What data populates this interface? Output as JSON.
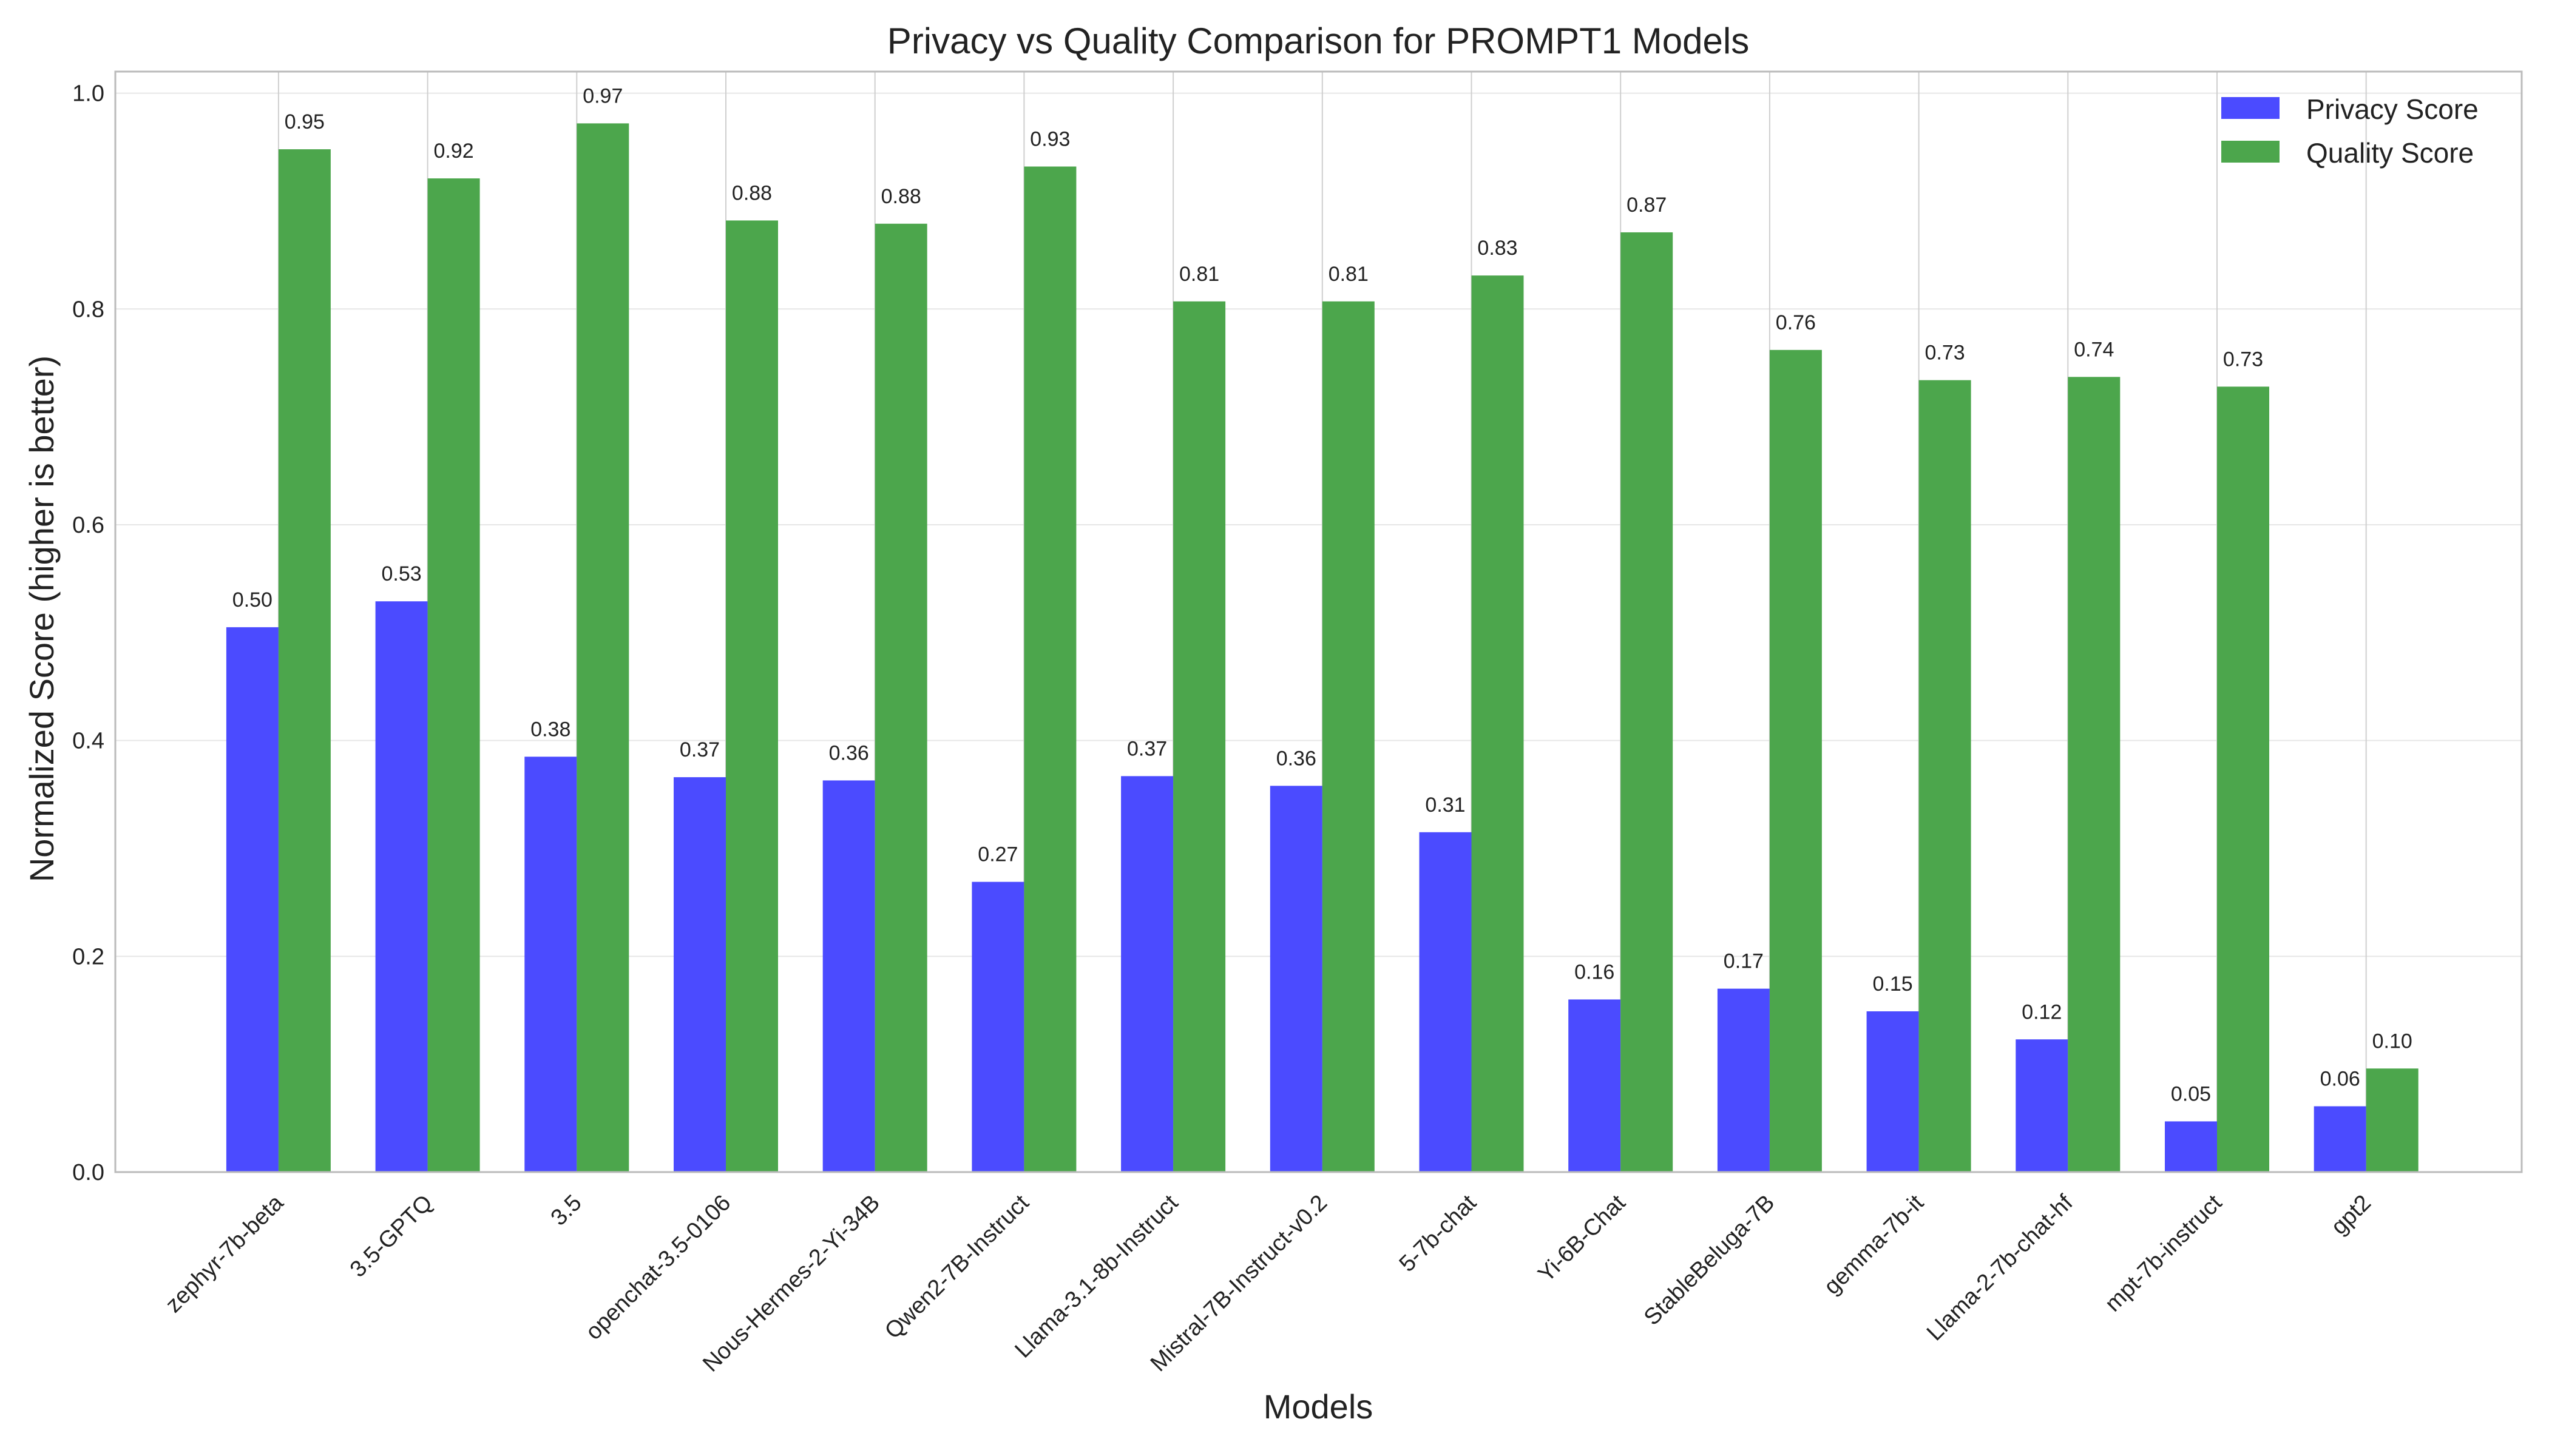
{
  "chart_data": {
    "type": "bar",
    "title": "Privacy vs Quality Comparison for PROMPT1 Models",
    "xlabel": "Models",
    "ylabel": "Normalized Score (higher is better)",
    "ylim": [
      0,
      1.02
    ],
    "yticks": [
      "0.0",
      "0.2",
      "0.4",
      "0.6",
      "0.8",
      "1.0"
    ],
    "grid": true,
    "legend_position": "top-right",
    "categories": [
      "zephyr-7b-beta",
      "3.5-GPTQ",
      "3.5",
      "openchat-3.5-0106",
      "Nous-Hermes-2-Yi-34B",
      "Qwen2-7B-Instruct",
      "Llama-3.1-8b-Instruct",
      "Mistral-7B-Instruct-v0.2",
      "5-7b-chat",
      "Yi-6B-Chat",
      "StableBeluga-7B",
      "gemma-7b-it",
      "Llama-2-7b-chat-hf",
      "mpt-7b-instruct",
      "gpt2"
    ],
    "series": [
      {
        "name": "Privacy Score",
        "color": "#4b4bff",
        "values": [
          0.505,
          0.529,
          0.385,
          0.366,
          0.363,
          0.269,
          0.367,
          0.358,
          0.315,
          0.16,
          0.17,
          0.149,
          0.123,
          0.047,
          0.061
        ],
        "labels": [
          "0.50",
          "0.53",
          "0.38",
          "0.37",
          "0.36",
          "0.27",
          "0.37",
          "0.36",
          "0.31",
          "0.16",
          "0.17",
          "0.15",
          "0.12",
          "0.05",
          "0.06"
        ]
      },
      {
        "name": "Quality Score",
        "color": "#4ca64c",
        "values": [
          0.948,
          0.921,
          0.972,
          0.882,
          0.879,
          0.932,
          0.807,
          0.807,
          0.831,
          0.871,
          0.762,
          0.734,
          0.737,
          0.728,
          0.096
        ],
        "labels": [
          "0.95",
          "0.92",
          "0.97",
          "0.88",
          "0.88",
          "0.93",
          "0.81",
          "0.81",
          "0.83",
          "0.87",
          "0.76",
          "0.73",
          "0.74",
          "0.73",
          "0.10"
        ]
      }
    ]
  }
}
